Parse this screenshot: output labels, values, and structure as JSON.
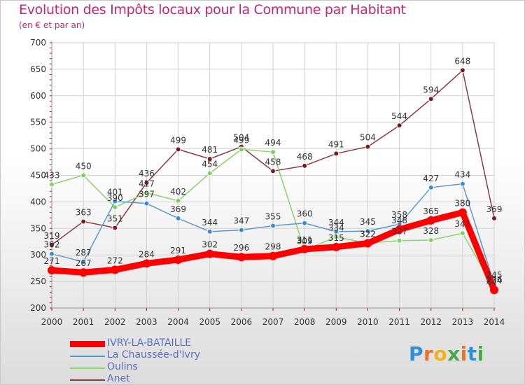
{
  "title": "Evolution des Impôts locaux pour la Commune par Habitant",
  "subtitle": "(en € et par an)",
  "logo": {
    "text": "Proxiti",
    "letter_colors": [
      "#2f8fd8",
      "#e8732a",
      "#f4b21f",
      "#48a84a",
      "#e8732a",
      "#2f8fd8",
      "#48a84a"
    ]
  },
  "chart_data": {
    "type": "line",
    "x": [
      2000,
      2001,
      2002,
      2003,
      2004,
      2005,
      2006,
      2007,
      2008,
      2009,
      2010,
      2011,
      2012,
      2013,
      2014
    ],
    "ylim": [
      200,
      700
    ],
    "yticks": [
      200,
      250,
      300,
      350,
      400,
      450,
      500,
      550,
      600,
      650,
      700
    ],
    "grid": true,
    "legend_position": "bottom-left",
    "series": [
      {
        "name": "Anet",
        "color": "#7a1a22",
        "line_color": "#8c3a42",
        "values": [
          319,
          363,
          351,
          436,
          499,
          481,
          504,
          458,
          468,
          491,
          504,
          544,
          594,
          648,
          369
        ],
        "labels": [
          "319",
          "363",
          "351",
          "436",
          "499",
          "481",
          "504",
          "458",
          "468",
          "491",
          "504",
          "544",
          "594",
          "648",
          "369"
        ]
      },
      {
        "name": "Oulins",
        "color": "#7cd45a",
        "line_color": "#8ad46a",
        "values": [
          433,
          450,
          390,
          417,
          402,
          454,
          499,
          494,
          309,
          334,
          322,
          327,
          328,
          341,
          236
        ],
        "labels": [
          "433",
          "450",
          "390",
          "417",
          "402",
          "454",
          "499",
          "494",
          "309",
          "334",
          "322",
          "327",
          "328",
          "341",
          "236"
        ]
      },
      {
        "name": "La Chaussée-d'Ivry",
        "color": "#3a8ad8",
        "line_color": "#5a9ad0",
        "values": [
          302,
          287,
          401,
          397,
          369,
          344,
          347,
          355,
          360,
          344,
          345,
          358,
          427,
          434,
          245
        ],
        "labels": [
          "302",
          "287",
          "401",
          "397",
          "369",
          "344",
          "347",
          "355",
          "360",
          "344",
          "345",
          "358",
          "427",
          "434",
          "245"
        ]
      },
      {
        "name": "IVRY-LA-BATAILLE",
        "color": "#ff0000",
        "line_color": "#ff0000",
        "values": [
          271,
          267,
          272,
          284,
          291,
          302,
          296,
          298,
          311,
          315,
          322,
          348,
          365,
          380,
          234
        ],
        "labels": [
          "271",
          "267",
          "272",
          "284",
          "291",
          "302",
          "296",
          "298",
          "311",
          "315",
          "322",
          "348",
          "365",
          "380",
          "234"
        ]
      }
    ]
  }
}
